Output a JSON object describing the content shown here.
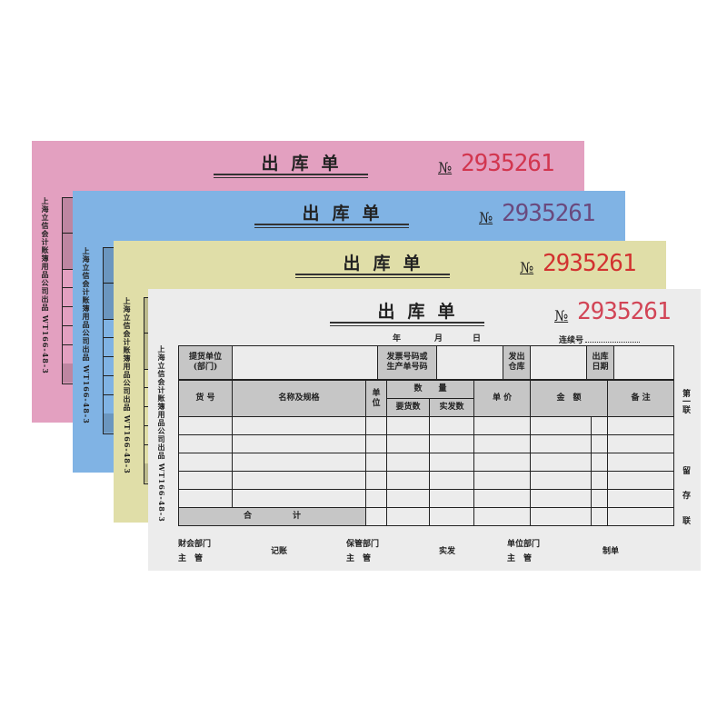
{
  "sheets": [
    {
      "color": "#e3a0c0",
      "number_color": "#d2364f",
      "number": "2935261"
    },
    {
      "color": "#80b3e4",
      "number_color": "#6a4a7e",
      "number": "2935261"
    },
    {
      "color": "#e0dea8",
      "number_color": "#d23230",
      "number": "2935261"
    },
    {
      "color": "#ececec",
      "number_color": "#d24556",
      "number": "2935261"
    }
  ],
  "form": {
    "title": "出库单",
    "no_label": "№",
    "date": {
      "year": "年",
      "month": "月",
      "day": "日"
    },
    "serial_label": "连续号",
    "side_text": "上海立信会计账簿用品公司出品 WT166-48-3",
    "row1": {
      "consignee": "提货单位\n(部门)",
      "invoice": "发票号码或\n生产单号码",
      "warehouse": "发出\n仓库",
      "out_date": "出库\n日期"
    },
    "columns": {
      "item_no": "货 号",
      "name_spec": "名称及规格",
      "unit": "单\n位",
      "quantity": "数　　量",
      "requested": "要货数",
      "shipped": "实发数",
      "unit_price": "单 价",
      "amount": "金　额",
      "remarks": "备 注"
    },
    "total_label": "合　　　　　计",
    "copy_label": "第一联",
    "copy_purpose": [
      "留",
      "存",
      "联"
    ],
    "footer": {
      "finance": "财会部门\n主　管",
      "bookkeeping": "记账",
      "custody": "保管部门\n主　管",
      "shipped": "实发",
      "unit_dept": "单位部门\n主　管",
      "prepared": "制单"
    }
  }
}
